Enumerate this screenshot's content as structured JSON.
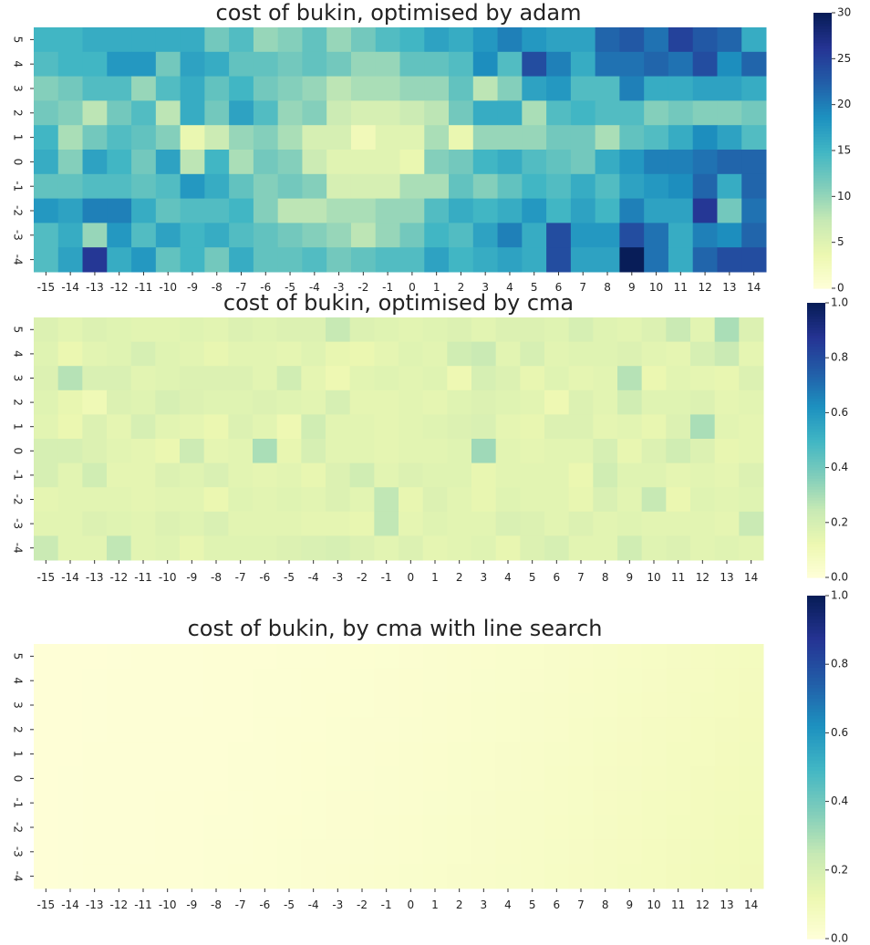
{
  "chart_data": [
    {
      "type": "heatmap",
      "title": "cost of bukin, optimised by adam",
      "x": [
        -15,
        -14,
        -13,
        -12,
        -11,
        -10,
        -9,
        -8,
        -7,
        -6,
        -5,
        -4,
        -3,
        -2,
        -1,
        0,
        1,
        2,
        3,
        4,
        5,
        6,
        7,
        8,
        9,
        10,
        11,
        12,
        13,
        14
      ],
      "y": [
        5,
        4,
        3,
        2,
        1,
        0,
        -1,
        -2,
        -3,
        -4
      ],
      "colorbar": {
        "min": 0,
        "max": 30,
        "ticks": [
          0,
          5,
          10,
          15,
          20,
          25,
          30
        ]
      },
      "colormap": "YlGnBu",
      "z": [
        [
          15,
          15,
          16,
          16,
          16,
          16,
          16,
          12,
          14,
          10,
          11,
          13,
          10,
          12,
          14,
          15,
          17,
          16,
          18,
          20,
          18,
          17,
          17,
          22,
          23,
          21,
          25,
          23,
          22,
          16
        ],
        [
          14,
          15,
          15,
          18,
          18,
          12,
          17,
          16,
          13,
          13,
          12,
          13,
          12,
          10,
          10,
          13,
          13,
          14,
          19,
          14,
          24,
          20,
          16,
          21,
          21,
          22,
          21,
          24,
          19,
          22
        ],
        [
          11,
          12,
          14,
          14,
          10,
          14,
          16,
          13,
          15,
          12,
          11,
          10,
          8,
          9,
          9,
          10,
          10,
          13,
          8,
          11,
          17,
          18,
          14,
          14,
          20,
          16,
          16,
          17,
          17,
          16
        ],
        [
          12,
          11,
          8,
          12,
          14,
          8,
          16,
          12,
          17,
          14,
          10,
          11,
          7,
          6,
          6,
          7,
          8,
          12,
          16,
          16,
          9,
          14,
          15,
          14,
          14,
          11,
          12,
          11,
          11,
          12
        ],
        [
          15,
          9,
          12,
          14,
          13,
          11,
          4,
          7,
          10,
          11,
          9,
          6,
          6,
          3,
          5,
          5,
          9,
          4,
          10,
          10,
          10,
          12,
          12,
          9,
          13,
          14,
          16,
          19,
          17,
          14
        ],
        [
          16,
          11,
          17,
          15,
          12,
          17,
          8,
          15,
          9,
          12,
          11,
          7,
          5,
          5,
          5,
          4,
          11,
          12,
          15,
          16,
          14,
          13,
          12,
          16,
          18,
          20,
          20,
          21,
          22,
          22
        ],
        [
          13,
          13,
          14,
          14,
          13,
          14,
          18,
          16,
          13,
          11,
          12,
          11,
          6,
          6,
          6,
          9,
          9,
          13,
          11,
          13,
          15,
          14,
          16,
          14,
          17,
          18,
          19,
          22,
          16,
          22
        ],
        [
          18,
          17,
          20,
          20,
          16,
          13,
          14,
          14,
          15,
          11,
          8,
          8,
          9,
          9,
          10,
          10,
          14,
          16,
          15,
          16,
          18,
          15,
          17,
          15,
          20,
          17,
          17,
          26,
          12,
          21
        ],
        [
          14,
          16,
          10,
          18,
          14,
          17,
          15,
          16,
          14,
          13,
          12,
          11,
          10,
          8,
          10,
          12,
          15,
          14,
          17,
          20,
          16,
          24,
          18,
          18,
          24,
          21,
          16,
          20,
          19,
          22
        ],
        [
          14,
          17,
          26,
          16,
          18,
          13,
          15,
          12,
          16,
          13,
          13,
          14,
          12,
          13,
          14,
          14,
          17,
          15,
          16,
          17,
          16,
          24,
          17,
          17,
          30,
          21,
          16,
          22,
          24,
          24
        ]
      ]
    },
    {
      "type": "heatmap",
      "title": "cost of bukin, optimised by cma",
      "x": [
        -15,
        -14,
        -13,
        -12,
        -11,
        -10,
        -9,
        -8,
        -7,
        -6,
        -5,
        -4,
        -3,
        -2,
        -1,
        0,
        1,
        2,
        3,
        4,
        5,
        6,
        7,
        8,
        9,
        10,
        11,
        12,
        13,
        14
      ],
      "y": [
        5,
        4,
        3,
        2,
        1,
        0,
        -1,
        -2,
        -3,
        -4
      ],
      "colorbar": {
        "min": 0,
        "max": 1,
        "ticks": [
          0.0,
          0.2,
          0.4,
          0.6,
          0.8,
          1.0
        ]
      },
      "colormap": "YlGnBu",
      "z": [
        [
          0.18,
          0.16,
          0.18,
          0.17,
          0.16,
          0.16,
          0.17,
          0.16,
          0.18,
          0.17,
          0.18,
          0.18,
          0.25,
          0.18,
          0.17,
          0.16,
          0.17,
          0.18,
          0.16,
          0.18,
          0.18,
          0.17,
          0.2,
          0.17,
          0.16,
          0.18,
          0.24,
          0.16,
          0.3,
          0.18
        ],
        [
          0.17,
          0.13,
          0.16,
          0.17,
          0.2,
          0.17,
          0.16,
          0.14,
          0.16,
          0.16,
          0.15,
          0.17,
          0.14,
          0.13,
          0.15,
          0.17,
          0.16,
          0.22,
          0.24,
          0.16,
          0.2,
          0.16,
          0.17,
          0.17,
          0.18,
          0.16,
          0.15,
          0.2,
          0.24,
          0.15
        ],
        [
          0.18,
          0.28,
          0.19,
          0.19,
          0.16,
          0.17,
          0.18,
          0.18,
          0.18,
          0.16,
          0.22,
          0.15,
          0.12,
          0.16,
          0.17,
          0.16,
          0.17,
          0.12,
          0.2,
          0.18,
          0.14,
          0.17,
          0.15,
          0.16,
          0.28,
          0.13,
          0.16,
          0.15,
          0.14,
          0.18
        ],
        [
          0.17,
          0.14,
          0.11,
          0.18,
          0.17,
          0.2,
          0.18,
          0.17,
          0.17,
          0.18,
          0.17,
          0.16,
          0.2,
          0.15,
          0.15,
          0.16,
          0.15,
          0.17,
          0.18,
          0.17,
          0.16,
          0.12,
          0.18,
          0.16,
          0.22,
          0.17,
          0.17,
          0.18,
          0.15,
          0.16
        ],
        [
          0.16,
          0.13,
          0.18,
          0.15,
          0.2,
          0.16,
          0.15,
          0.13,
          0.18,
          0.16,
          0.12,
          0.22,
          0.16,
          0.16,
          0.15,
          0.16,
          0.17,
          0.18,
          0.19,
          0.15,
          0.14,
          0.18,
          0.18,
          0.15,
          0.16,
          0.14,
          0.18,
          0.3,
          0.16,
          0.15
        ],
        [
          0.2,
          0.2,
          0.18,
          0.16,
          0.15,
          0.13,
          0.23,
          0.15,
          0.16,
          0.3,
          0.14,
          0.2,
          0.16,
          0.16,
          0.15,
          0.16,
          0.16,
          0.17,
          0.32,
          0.16,
          0.15,
          0.16,
          0.16,
          0.2,
          0.14,
          0.18,
          0.22,
          0.18,
          0.14,
          0.15
        ],
        [
          0.2,
          0.16,
          0.22,
          0.15,
          0.15,
          0.18,
          0.17,
          0.19,
          0.16,
          0.15,
          0.16,
          0.14,
          0.18,
          0.22,
          0.16,
          0.18,
          0.17,
          0.17,
          0.14,
          0.16,
          0.16,
          0.16,
          0.13,
          0.22,
          0.17,
          0.17,
          0.15,
          0.16,
          0.15,
          0.18
        ],
        [
          0.15,
          0.16,
          0.16,
          0.16,
          0.15,
          0.16,
          0.16,
          0.13,
          0.17,
          0.16,
          0.17,
          0.16,
          0.18,
          0.16,
          0.26,
          0.14,
          0.18,
          0.16,
          0.14,
          0.17,
          0.16,
          0.16,
          0.14,
          0.19,
          0.16,
          0.25,
          0.13,
          0.17,
          0.16,
          0.17
        ],
        [
          0.16,
          0.16,
          0.18,
          0.17,
          0.16,
          0.18,
          0.17,
          0.19,
          0.16,
          0.16,
          0.16,
          0.15,
          0.15,
          0.14,
          0.26,
          0.15,
          0.17,
          0.16,
          0.16,
          0.19,
          0.18,
          0.16,
          0.18,
          0.16,
          0.17,
          0.16,
          0.16,
          0.16,
          0.15,
          0.24
        ],
        [
          0.24,
          0.16,
          0.16,
          0.26,
          0.16,
          0.17,
          0.14,
          0.17,
          0.17,
          0.17,
          0.18,
          0.19,
          0.2,
          0.18,
          0.16,
          0.18,
          0.15,
          0.16,
          0.17,
          0.14,
          0.18,
          0.2,
          0.16,
          0.16,
          0.22,
          0.17,
          0.18,
          0.16,
          0.17,
          0.16
        ]
      ]
    },
    {
      "type": "heatmap",
      "title": "cost of bukin, by cma with line search",
      "x": [
        -15,
        -14,
        -13,
        -12,
        -11,
        -10,
        -9,
        -8,
        -7,
        -6,
        -5,
        -4,
        -3,
        -2,
        -1,
        0,
        1,
        2,
        3,
        4,
        5,
        6,
        7,
        8,
        9,
        10,
        11,
        12,
        13,
        14
      ],
      "y": [
        5,
        4,
        3,
        2,
        1,
        0,
        -1,
        -2,
        -3,
        -4
      ],
      "colorbar": {
        "min": 0,
        "max": 1,
        "ticks": [
          0.0,
          0.2,
          0.4,
          0.6,
          0.8,
          1.0
        ]
      },
      "colormap": "YlGnBu",
      "note_trend": "values rise slowly from left to right"
    }
  ]
}
